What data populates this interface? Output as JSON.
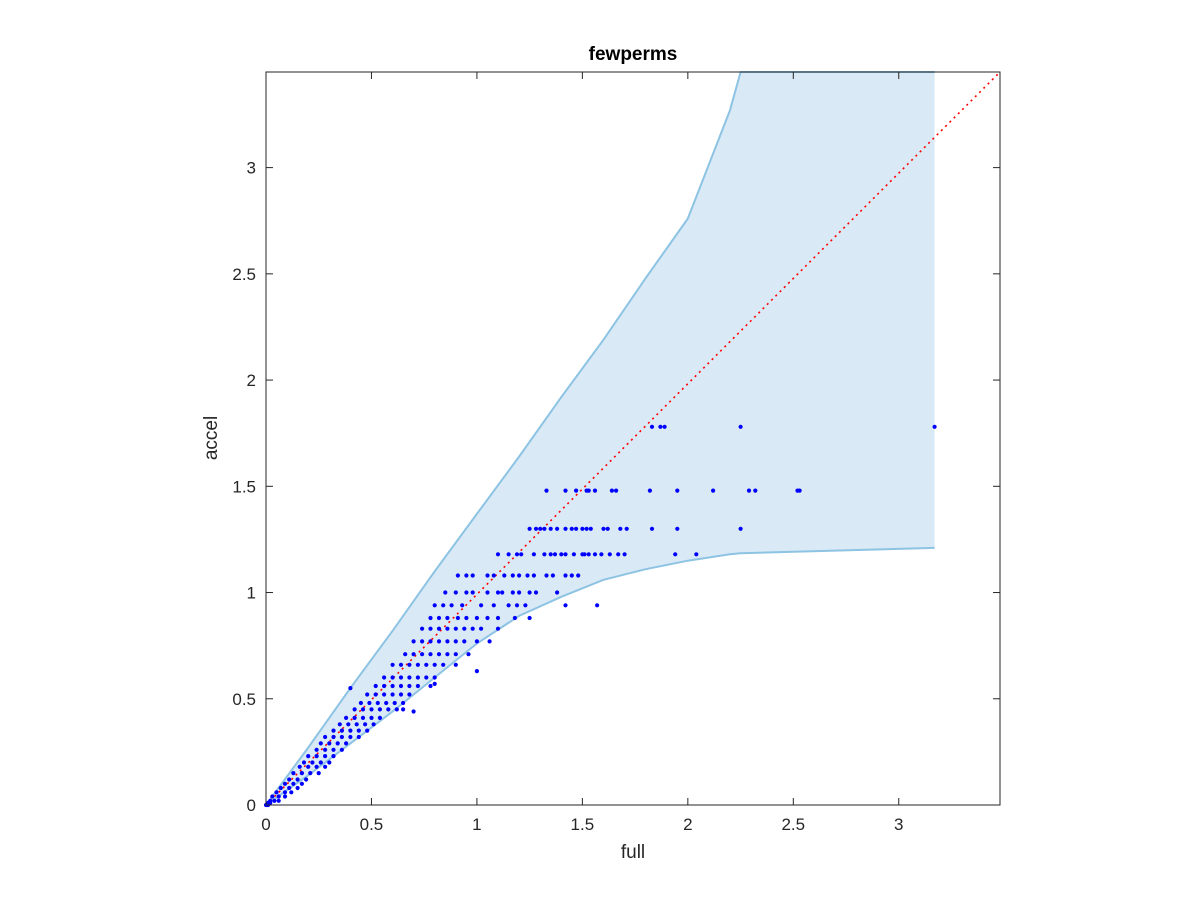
{
  "chart_data": {
    "type": "scatter",
    "title": "fewperms",
    "xlabel": "full",
    "ylabel": "accel",
    "xlim": [
      0,
      3.48
    ],
    "ylim": [
      0,
      3.45
    ],
    "xticks": [
      0,
      0.5,
      1,
      1.5,
      2,
      2.5,
      3
    ],
    "xtick_labels": [
      "0",
      "0.5",
      "1",
      "1.5",
      "2",
      "2.5",
      "3"
    ],
    "yticks": [
      0,
      0.5,
      1,
      1.5,
      2,
      2.5,
      3
    ],
    "ytick_labels": [
      "0",
      "0.5",
      "1",
      "1.5",
      "2",
      "2.5",
      "3"
    ],
    "grid": false,
    "colors": {
      "points": "#0000ff",
      "band_fill": "#d9e9f5",
      "band_edge": "#8dc3e3",
      "reference_line": "#ff0000",
      "axes": "#262626"
    },
    "reference_line": {
      "style": "dotted",
      "x": [
        0,
        3.48
      ],
      "y": [
        0,
        3.48
      ]
    },
    "band": {
      "x": [
        0,
        0.2,
        0.4,
        0.6,
        0.8,
        1.0,
        1.2,
        1.4,
        1.6,
        1.8,
        2.0,
        2.2,
        2.25,
        3.17
      ],
      "upper": [
        0,
        0.27,
        0.55,
        0.82,
        1.1,
        1.37,
        1.64,
        1.92,
        2.19,
        2.48,
        2.76,
        3.27,
        3.45,
        3.45
      ],
      "lower": [
        0,
        0.14,
        0.29,
        0.44,
        0.6,
        0.76,
        0.89,
        0.98,
        1.06,
        1.11,
        1.15,
        1.18,
        1.185,
        1.21
      ]
    },
    "series": [
      {
        "points": [
          [
            1.33,
            1.48
          ],
          [
            1.42,
            1.48
          ],
          [
            1.47,
            1.48
          ],
          [
            1.52,
            1.48
          ],
          [
            1.53,
            1.48
          ],
          [
            1.56,
            1.48
          ],
          [
            1.64,
            1.48
          ],
          [
            1.66,
            1.48
          ],
          [
            1.82,
            1.48
          ],
          [
            1.95,
            1.48
          ],
          [
            2.12,
            1.48
          ],
          [
            2.29,
            1.48
          ],
          [
            2.32,
            1.48
          ],
          [
            2.52,
            1.48
          ],
          [
            2.53,
            1.48
          ],
          [
            1.83,
            1.78
          ],
          [
            1.87,
            1.78
          ],
          [
            1.89,
            1.78
          ],
          [
            2.25,
            1.78
          ],
          [
            3.17,
            1.78
          ],
          [
            1.25,
            1.3
          ],
          [
            1.28,
            1.3
          ],
          [
            1.3,
            1.3
          ],
          [
            1.32,
            1.3
          ],
          [
            1.35,
            1.3
          ],
          [
            1.38,
            1.3
          ],
          [
            1.42,
            1.3
          ],
          [
            1.45,
            1.3
          ],
          [
            1.47,
            1.3
          ],
          [
            1.5,
            1.3
          ],
          [
            1.52,
            1.3
          ],
          [
            1.54,
            1.3
          ],
          [
            1.6,
            1.3
          ],
          [
            1.62,
            1.3
          ],
          [
            1.68,
            1.3
          ],
          [
            1.71,
            1.3
          ],
          [
            1.83,
            1.3
          ],
          [
            1.95,
            1.3
          ],
          [
            2.25,
            1.3
          ],
          [
            1.1,
            1.18
          ],
          [
            1.15,
            1.18
          ],
          [
            1.19,
            1.18
          ],
          [
            1.21,
            1.18
          ],
          [
            1.27,
            1.18
          ],
          [
            1.32,
            1.18
          ],
          [
            1.35,
            1.18
          ],
          [
            1.37,
            1.18
          ],
          [
            1.4,
            1.18
          ],
          [
            1.42,
            1.18
          ],
          [
            1.46,
            1.18
          ],
          [
            1.5,
            1.18
          ],
          [
            1.51,
            1.18
          ],
          [
            1.53,
            1.18
          ],
          [
            1.56,
            1.18
          ],
          [
            1.59,
            1.18
          ],
          [
            1.63,
            1.18
          ],
          [
            1.67,
            1.18
          ],
          [
            1.7,
            1.18
          ],
          [
            1.94,
            1.18
          ],
          [
            2.04,
            1.18
          ],
          [
            0.91,
            1.08
          ],
          [
            0.95,
            1.08
          ],
          [
            0.98,
            1.08
          ],
          [
            1.05,
            1.08
          ],
          [
            1.08,
            1.08
          ],
          [
            1.13,
            1.08
          ],
          [
            1.17,
            1.08
          ],
          [
            1.2,
            1.08
          ],
          [
            1.24,
            1.08
          ],
          [
            1.27,
            1.08
          ],
          [
            1.33,
            1.08
          ],
          [
            1.36,
            1.08
          ],
          [
            1.42,
            1.08
          ],
          [
            1.45,
            1.08
          ],
          [
            1.48,
            1.08
          ],
          [
            0.85,
            1.0
          ],
          [
            0.9,
            1.0
          ],
          [
            0.95,
            1.0
          ],
          [
            0.98,
            1.0
          ],
          [
            1.05,
            1.0
          ],
          [
            1.1,
            1.0
          ],
          [
            1.12,
            1.0
          ],
          [
            1.17,
            1.0
          ],
          [
            1.2,
            1.0
          ],
          [
            1.25,
            1.0
          ],
          [
            1.28,
            1.0
          ],
          [
            1.38,
            1.0
          ],
          [
            0.8,
            0.94
          ],
          [
            0.84,
            0.94
          ],
          [
            0.88,
            0.94
          ],
          [
            0.93,
            0.94
          ],
          [
            1.02,
            0.94
          ],
          [
            1.08,
            0.94
          ],
          [
            1.15,
            0.94
          ],
          [
            1.19,
            0.94
          ],
          [
            1.42,
            0.94
          ],
          [
            1.57,
            0.94
          ],
          [
            0.78,
            0.88
          ],
          [
            0.82,
            0.88
          ],
          [
            0.86,
            0.88
          ],
          [
            0.91,
            0.88
          ],
          [
            0.95,
            0.88
          ],
          [
            1.0,
            0.88
          ],
          [
            1.05,
            0.88
          ],
          [
            1.1,
            0.88
          ],
          [
            1.18,
            0.88
          ],
          [
            1.25,
            0.88
          ],
          [
            0.74,
            0.83
          ],
          [
            0.78,
            0.83
          ],
          [
            0.82,
            0.83
          ],
          [
            0.86,
            0.83
          ],
          [
            0.9,
            0.83
          ],
          [
            0.94,
            0.83
          ],
          [
            0.98,
            0.83
          ],
          [
            1.02,
            0.83
          ],
          [
            1.1,
            0.83
          ],
          [
            0.7,
            0.77
          ],
          [
            0.74,
            0.77
          ],
          [
            0.78,
            0.77
          ],
          [
            0.82,
            0.77
          ],
          [
            0.86,
            0.77
          ],
          [
            0.9,
            0.77
          ],
          [
            0.94,
            0.77
          ],
          [
            1.0,
            0.77
          ],
          [
            1.06,
            0.77
          ],
          [
            0.66,
            0.71
          ],
          [
            0.7,
            0.71
          ],
          [
            0.74,
            0.71
          ],
          [
            0.78,
            0.71
          ],
          [
            0.82,
            0.71
          ],
          [
            0.86,
            0.71
          ],
          [
            0.9,
            0.71
          ],
          [
            0.96,
            0.71
          ],
          [
            0.6,
            0.66
          ],
          [
            0.64,
            0.66
          ],
          [
            0.68,
            0.66
          ],
          [
            0.72,
            0.66
          ],
          [
            0.76,
            0.66
          ],
          [
            0.8,
            0.66
          ],
          [
            0.84,
            0.66
          ],
          [
            0.9,
            0.66
          ],
          [
            0.56,
            0.6
          ],
          [
            0.6,
            0.6
          ],
          [
            0.64,
            0.6
          ],
          [
            0.68,
            0.6
          ],
          [
            0.72,
            0.6
          ],
          [
            0.76,
            0.6
          ],
          [
            0.8,
            0.6
          ],
          [
            0.52,
            0.56
          ],
          [
            0.56,
            0.56
          ],
          [
            0.6,
            0.56
          ],
          [
            0.64,
            0.56
          ],
          [
            0.68,
            0.56
          ],
          [
            0.72,
            0.56
          ],
          [
            0.78,
            0.56
          ],
          [
            0.48,
            0.52
          ],
          [
            0.52,
            0.52
          ],
          [
            0.56,
            0.52
          ],
          [
            0.6,
            0.52
          ],
          [
            0.64,
            0.52
          ],
          [
            0.68,
            0.52
          ],
          [
            0.45,
            0.48
          ],
          [
            0.49,
            0.48
          ],
          [
            0.53,
            0.48
          ],
          [
            0.57,
            0.48
          ],
          [
            0.61,
            0.48
          ],
          [
            0.65,
            0.48
          ],
          [
            0.42,
            0.45
          ],
          [
            0.46,
            0.45
          ],
          [
            0.5,
            0.45
          ],
          [
            0.54,
            0.45
          ],
          [
            0.58,
            0.45
          ],
          [
            0.62,
            0.45
          ],
          [
            0.38,
            0.41
          ],
          [
            0.42,
            0.41
          ],
          [
            0.46,
            0.41
          ],
          [
            0.5,
            0.41
          ],
          [
            0.54,
            0.41
          ],
          [
            0.35,
            0.38
          ],
          [
            0.39,
            0.38
          ],
          [
            0.43,
            0.38
          ],
          [
            0.47,
            0.38
          ],
          [
            0.51,
            0.38
          ],
          [
            0.32,
            0.35
          ],
          [
            0.36,
            0.35
          ],
          [
            0.4,
            0.35
          ],
          [
            0.44,
            0.35
          ],
          [
            0.48,
            0.35
          ],
          [
            0.28,
            0.32
          ],
          [
            0.32,
            0.32
          ],
          [
            0.36,
            0.32
          ],
          [
            0.4,
            0.32
          ],
          [
            0.44,
            0.32
          ],
          [
            0.26,
            0.29
          ],
          [
            0.3,
            0.29
          ],
          [
            0.34,
            0.29
          ],
          [
            0.38,
            0.29
          ],
          [
            0.24,
            0.26
          ],
          [
            0.28,
            0.26
          ],
          [
            0.32,
            0.26
          ],
          [
            0.36,
            0.26
          ],
          [
            0.2,
            0.23
          ],
          [
            0.24,
            0.23
          ],
          [
            0.28,
            0.23
          ],
          [
            0.32,
            0.23
          ],
          [
            0.18,
            0.2
          ],
          [
            0.22,
            0.2
          ],
          [
            0.26,
            0.2
          ],
          [
            0.3,
            0.2
          ],
          [
            0.16,
            0.18
          ],
          [
            0.2,
            0.18
          ],
          [
            0.24,
            0.18
          ],
          [
            0.28,
            0.18
          ],
          [
            0.13,
            0.15
          ],
          [
            0.17,
            0.15
          ],
          [
            0.21,
            0.15
          ],
          [
            0.25,
            0.15
          ],
          [
            0.11,
            0.12
          ],
          [
            0.15,
            0.12
          ],
          [
            0.19,
            0.12
          ],
          [
            0.09,
            0.1
          ],
          [
            0.13,
            0.1
          ],
          [
            0.17,
            0.1
          ],
          [
            0.07,
            0.08
          ],
          [
            0.11,
            0.08
          ],
          [
            0.15,
            0.08
          ],
          [
            0.05,
            0.06
          ],
          [
            0.09,
            0.06
          ],
          [
            0.12,
            0.06
          ],
          [
            0.03,
            0.04
          ],
          [
            0.06,
            0.04
          ],
          [
            0.09,
            0.04
          ],
          [
            0.02,
            0.02
          ],
          [
            0.04,
            0.02
          ],
          [
            0.06,
            0.02
          ],
          [
            0.01,
            0.01
          ],
          [
            0.02,
            0.01
          ],
          [
            0.0,
            0.0
          ],
          [
            0.01,
            0.0
          ],
          [
            0.4,
            0.55
          ],
          [
            0.65,
            0.45
          ],
          [
            1.0,
            0.63
          ],
          [
            0.7,
            0.44
          ],
          [
            1.23,
            0.94
          ],
          [
            0.8,
            0.57
          ]
        ]
      }
    ]
  }
}
